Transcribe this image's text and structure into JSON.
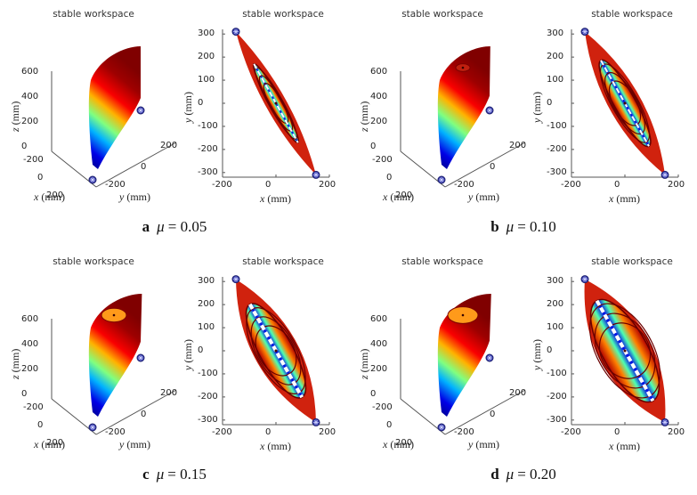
{
  "figure": {
    "panels": [
      {
        "letter": "a",
        "mu_symbol": "μ",
        "mu_text": "= 0.05",
        "mu": 0.05
      },
      {
        "letter": "b",
        "mu_symbol": "μ",
        "mu_text": "= 0.10",
        "mu": 0.1
      },
      {
        "letter": "c",
        "mu_symbol": "μ",
        "mu_text": "= 0.15",
        "mu": 0.15
      },
      {
        "letter": "d",
        "mu_symbol": "μ",
        "mu_text": "= 0.20",
        "mu": 0.2
      }
    ],
    "plot_title": "stable workspace",
    "labels": {
      "x_var": "x",
      "y_var": "y",
      "z_var": "z",
      "unit": "(mm)"
    },
    "colors": {
      "marker": "#2b2f9c",
      "axis": "#333333",
      "low": "#00008f",
      "high": "#8b0000"
    }
  },
  "chart_data": [
    {
      "type": "scatter",
      "view": "3d",
      "title": "stable workspace",
      "xlabel": "x (mm)",
      "ylabel": "y (mm)",
      "zlabel": "z (mm)",
      "x_ticks": [
        "-200",
        "0",
        "200"
      ],
      "y_ticks": [
        "-200",
        "0",
        "200"
      ],
      "z_ticks": [
        "0",
        "200",
        "400",
        "600"
      ],
      "zlim": [
        0,
        650
      ],
      "colormap": "jet (by z)",
      "markers": [
        {
          "x": 150,
          "y": -150,
          "z": 0
        },
        {
          "x": -150,
          "y": 150,
          "z": 300
        }
      ]
    },
    {
      "type": "scatter",
      "view": "top (x-y)",
      "title": "stable workspace",
      "xlabel": "x (mm)",
      "ylabel": "y (mm)",
      "x_ticks": [
        "-200",
        "0",
        "200"
      ],
      "y_ticks": [
        "300",
        "200",
        "100",
        "0",
        "-100",
        "-200",
        "-300"
      ],
      "xlim": [
        -200,
        200
      ],
      "ylim": [
        -320,
        320
      ],
      "markers": [
        {
          "x": -150,
          "y": 310
        },
        {
          "x": 150,
          "y": -310
        }
      ],
      "workspace_half_width_by_mu": {
        "0.05": 35,
        "0.10": 55,
        "0.15": 75,
        "0.20": 90
      }
    }
  ]
}
